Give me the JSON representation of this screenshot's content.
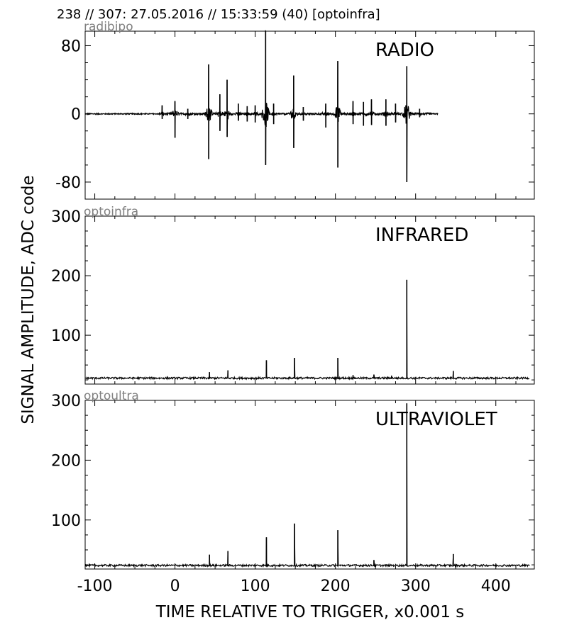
{
  "header": {
    "title": "238 // 307:   27.05.2016 // 15:33:59 (40)  [optoinfra]"
  },
  "axes": {
    "xlabel": "TIME RELATIVE TO TRIGGER,   x0.001 s",
    "ylabel": "SIGNAL AMPLITUDE,  ADC code"
  },
  "chart_data": [
    {
      "type": "line",
      "channel": "radibipo",
      "label": "RADIO",
      "xlim": [
        -112,
        448
      ],
      "ylim": [
        -100,
        97
      ],
      "xticks": [
        -100,
        0,
        100,
        200,
        300,
        400
      ],
      "yticks": [
        80,
        0,
        -80
      ],
      "series_extent": [
        -112,
        328
      ],
      "baseline": 0,
      "spikes": [
        {
          "x": -16,
          "hi": 10,
          "lo": -6
        },
        {
          "x": 0,
          "hi": 15,
          "lo": -28
        },
        {
          "x": 16,
          "hi": 6,
          "lo": -6
        },
        {
          "x": 42,
          "hi": 58,
          "lo": -53
        },
        {
          "x": 56,
          "hi": 23,
          "lo": -20
        },
        {
          "x": 65,
          "hi": 40,
          "lo": -27
        },
        {
          "x": 79,
          "hi": 12,
          "lo": -8
        },
        {
          "x": 90,
          "hi": 9,
          "lo": -9
        },
        {
          "x": 100,
          "hi": 10,
          "lo": -10
        },
        {
          "x": 113,
          "hi": 98,
          "lo": -60
        },
        {
          "x": 123,
          "hi": 12,
          "lo": -12
        },
        {
          "x": 148,
          "hi": 45,
          "lo": -40
        },
        {
          "x": 160,
          "hi": 8,
          "lo": -8
        },
        {
          "x": 188,
          "hi": 12,
          "lo": -16
        },
        {
          "x": 203,
          "hi": 62,
          "lo": -63
        },
        {
          "x": 222,
          "hi": 15,
          "lo": -12
        },
        {
          "x": 235,
          "hi": 14,
          "lo": -14
        },
        {
          "x": 245,
          "hi": 17,
          "lo": -13
        },
        {
          "x": 263,
          "hi": 17,
          "lo": -14
        },
        {
          "x": 275,
          "hi": 12,
          "lo": -10
        },
        {
          "x": 289,
          "hi": 56,
          "lo": -80
        },
        {
          "x": 305,
          "hi": 6,
          "lo": -4
        }
      ]
    },
    {
      "type": "line",
      "channel": "optoinfra",
      "label": "INFRARED",
      "xlim": [
        -112,
        448
      ],
      "ylim": [
        18,
        300
      ],
      "xticks": [
        -100,
        0,
        100,
        200,
        300,
        400
      ],
      "yticks": [
        300,
        200,
        100
      ],
      "series_extent": [
        -112,
        442
      ],
      "baseline": 28,
      "spikes": [
        {
          "x": 43,
          "value": 38
        },
        {
          "x": 66,
          "value": 41
        },
        {
          "x": 114,
          "value": 58
        },
        {
          "x": 149,
          "value": 62
        },
        {
          "x": 203,
          "value": 62
        },
        {
          "x": 222,
          "value": 33
        },
        {
          "x": 248,
          "value": 34
        },
        {
          "x": 270,
          "value": 32
        },
        {
          "x": 289,
          "value": 193
        },
        {
          "x": 347,
          "value": 40
        }
      ]
    },
    {
      "type": "line",
      "channel": "optoultra",
      "label": "ULTRAVIOLET",
      "xlim": [
        -112,
        448
      ],
      "ylim": [
        18,
        300
      ],
      "xticks": [
        -100,
        0,
        100,
        200,
        300,
        400
      ],
      "yticks": [
        300,
        200,
        100
      ],
      "series_extent": [
        -112,
        442
      ],
      "baseline": 24,
      "spikes": [
        {
          "x": 43,
          "value": 42
        },
        {
          "x": 66,
          "value": 48
        },
        {
          "x": 114,
          "value": 71
        },
        {
          "x": 149,
          "value": 94
        },
        {
          "x": 203,
          "value": 83
        },
        {
          "x": 248,
          "value": 33
        },
        {
          "x": 289,
          "value": 295
        },
        {
          "x": 347,
          "value": 43
        }
      ]
    }
  ]
}
